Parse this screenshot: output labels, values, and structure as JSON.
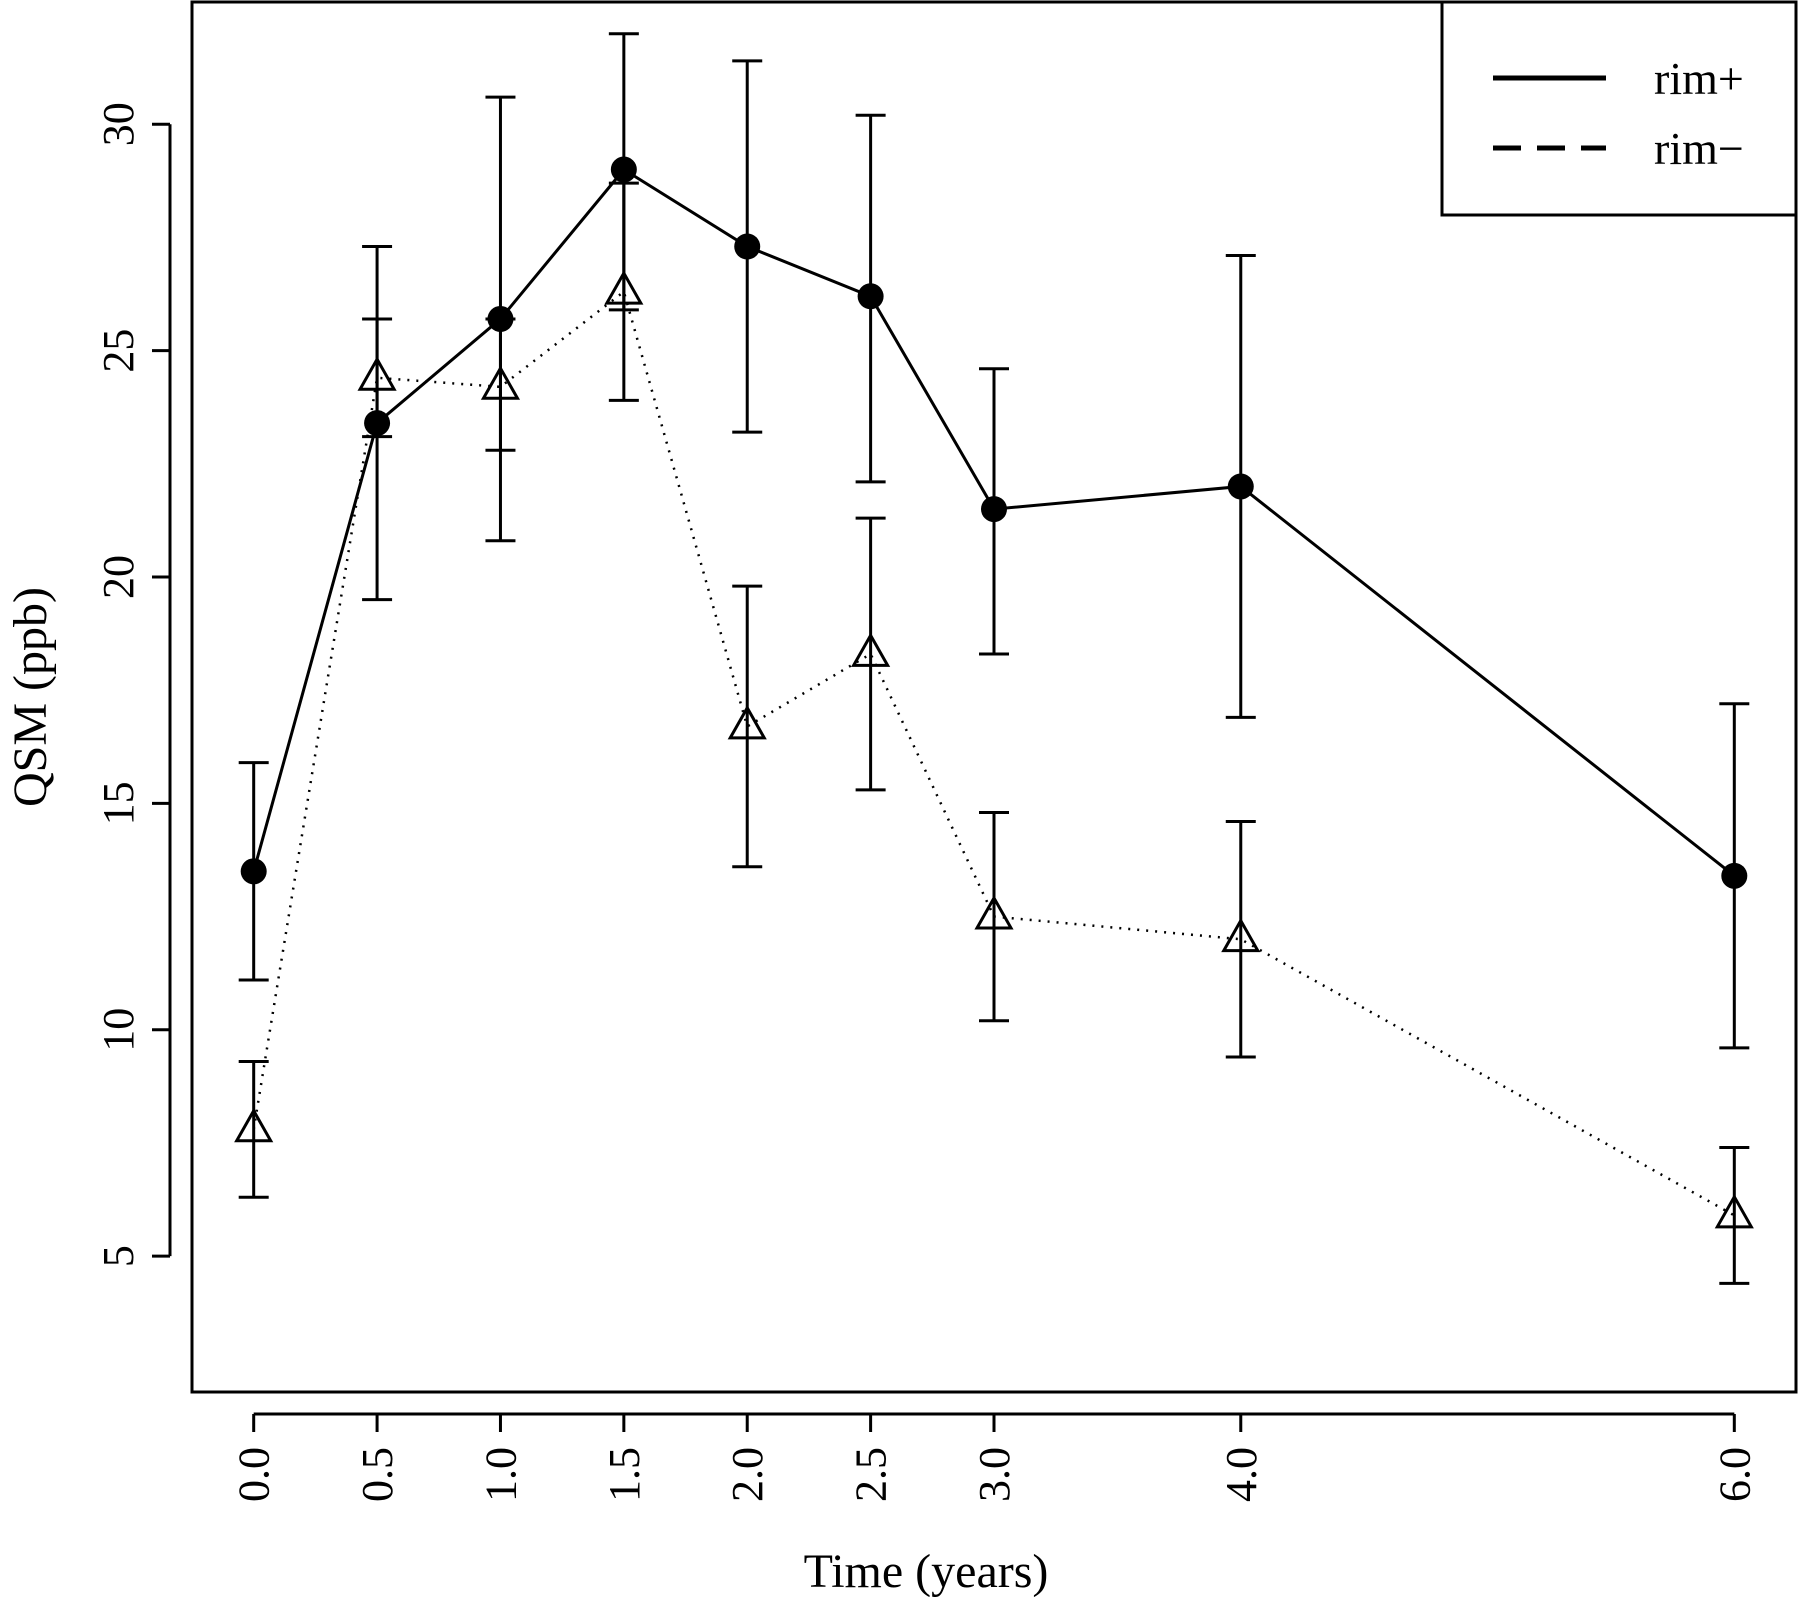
{
  "chart_data": {
    "type": "line",
    "title": "",
    "xlabel": "Time (years)",
    "ylabel": "QSM (ppb)",
    "xlim": [
      -0.25,
      6.25
    ],
    "ylim": [
      2.0,
      32.7
    ],
    "x_ticks": [
      0.0,
      0.5,
      1.0,
      1.5,
      2.0,
      2.5,
      3.0,
      4.0,
      6.0
    ],
    "x_tick_labels": [
      "0.0",
      "0.5",
      "1.0",
      "1.5",
      "2.0",
      "2.5",
      "3.0",
      "4.0",
      "6.0"
    ],
    "y_ticks": [
      5,
      10,
      15,
      20,
      25,
      30
    ],
    "y_tick_labels": [
      "5",
      "10",
      "15",
      "20",
      "25",
      "30"
    ],
    "grid": false,
    "legend_position": "top-right",
    "series": [
      {
        "name": "rim+",
        "line_style": "solid",
        "marker": "filled-circle",
        "x": [
          0.0,
          0.5,
          1.0,
          1.5,
          2.0,
          2.5,
          3.0,
          4.0,
          6.0
        ],
        "y": [
          13.5,
          23.4,
          25.7,
          29.0,
          27.3,
          26.2,
          21.5,
          22.0,
          13.4
        ],
        "err_low": [
          11.1,
          19.5,
          20.8,
          25.9,
          23.2,
          22.1,
          18.3,
          16.9,
          9.6
        ],
        "err_high": [
          15.9,
          27.3,
          30.6,
          32.0,
          31.4,
          30.2,
          24.6,
          27.1,
          17.2
        ]
      },
      {
        "name": "rim−",
        "line_style": "dotted",
        "marker": "open-triangle",
        "x": [
          0.0,
          0.5,
          1.0,
          1.5,
          2.0,
          2.5,
          3.0,
          4.0,
          6.0
        ],
        "y": [
          7.8,
          24.4,
          24.2,
          26.3,
          16.7,
          18.3,
          12.5,
          12.0,
          5.9
        ],
        "err_low": [
          6.3,
          23.1,
          22.8,
          23.9,
          13.6,
          15.3,
          10.2,
          9.4,
          4.4
        ],
        "err_high": [
          9.3,
          25.7,
          25.7,
          28.7,
          19.8,
          21.3,
          14.8,
          14.6,
          7.4
        ]
      }
    ]
  }
}
